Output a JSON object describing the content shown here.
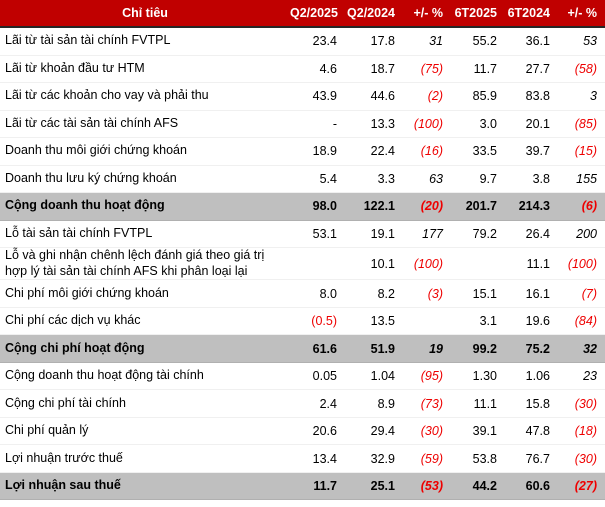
{
  "style": {
    "header_bg": "#C00000",
    "header_text_color": "#FFFFFF",
    "total_row_bg": "#BFBFBF",
    "negative_color": "#EE0000",
    "text_color": "#000000"
  },
  "chart_data": {
    "type": "table",
    "title": "",
    "columns": [
      "Chỉ tiêu",
      "Q2/2025",
      "Q2/2024",
      "+/- %",
      "6T2025",
      "6T2024",
      "+/- %"
    ],
    "pct_column_indices": [
      2,
      5
    ],
    "rows": [
      {
        "label": "Lãi từ tài sản tài chính FVTPL",
        "values": [
          "23.4",
          "17.8",
          "31",
          "55.2",
          "36.1",
          "53"
        ],
        "total": false
      },
      {
        "label": "Lãi từ khoản đầu tư HTM",
        "values": [
          "4.6",
          "18.7",
          "(75)",
          "11.7",
          "27.7",
          "(58)"
        ],
        "total": false
      },
      {
        "label": "Lãi từ các khoản cho vay và phải thu",
        "values": [
          "43.9",
          "44.6",
          "(2)",
          "85.9",
          "83.8",
          "3"
        ],
        "total": false
      },
      {
        "label": "Lãi từ các tài sản tài chính AFS",
        "values": [
          "-",
          "13.3",
          "(100)",
          "3.0",
          "20.1",
          "(85)"
        ],
        "total": false
      },
      {
        "label": "Doanh thu môi giới chứng khoán",
        "values": [
          "18.9",
          "22.4",
          "(16)",
          "33.5",
          "39.7",
          "(15)"
        ],
        "total": false
      },
      {
        "label": "Doanh thu lưu ký chứng khoán",
        "values": [
          "5.4",
          "3.3",
          "63",
          "9.7",
          "3.8",
          "155"
        ],
        "total": false
      },
      {
        "label": "Cộng doanh thu hoạt động",
        "values": [
          "98.0",
          "122.1",
          "(20)",
          "201.7",
          "214.3",
          "(6)"
        ],
        "total": true
      },
      {
        "label": "Lỗ tài sản tài chính FVTPL",
        "values": [
          "53.1",
          "19.1",
          "177",
          "79.2",
          "26.4",
          "200"
        ],
        "total": false
      },
      {
        "label": "Lỗ và ghi nhận chênh lệch đánh giá theo giá trị hợp lý tài sản tài chính AFS khi phân loại lại",
        "values": [
          "",
          "10.1",
          "(100)",
          "",
          "11.1",
          "(100)"
        ],
        "total": false
      },
      {
        "label": "Chi phí môi giới chứng khoán",
        "values": [
          "8.0",
          "8.2",
          "(3)",
          "15.1",
          "16.1",
          "(7)"
        ],
        "total": false
      },
      {
        "label": "Chi phí các dịch vụ khác",
        "values": [
          "(0.5)",
          "13.5",
          "",
          "3.1",
          "19.6",
          "(84)"
        ],
        "total": false
      },
      {
        "label": "Cộng chi phí hoạt động",
        "values": [
          "61.6",
          "51.9",
          "19",
          "99.2",
          "75.2",
          "32"
        ],
        "total": true
      },
      {
        "label": "Cộng doanh thu hoạt động tài chính",
        "values": [
          "0.05",
          "1.04",
          "(95)",
          "1.30",
          "1.06",
          "23"
        ],
        "total": false
      },
      {
        "label": "Cộng chi phí tài chính",
        "values": [
          "2.4",
          "8.9",
          "(73)",
          "11.1",
          "15.8",
          "(30)"
        ],
        "total": false
      },
      {
        "label": "Chi phí quản lý",
        "values": [
          "20.6",
          "29.4",
          "(30)",
          "39.1",
          "47.8",
          "(18)"
        ],
        "total": false
      },
      {
        "label": "Lợi nhuận trước thuế",
        "values": [
          "13.4",
          "32.9",
          "(59)",
          "53.8",
          "76.7",
          "(30)"
        ],
        "total": false
      },
      {
        "label": "Lợi nhuận sau thuế",
        "values": [
          "11.7",
          "25.1",
          "(53)",
          "44.2",
          "60.6",
          "(27)"
        ],
        "total": true
      }
    ]
  }
}
